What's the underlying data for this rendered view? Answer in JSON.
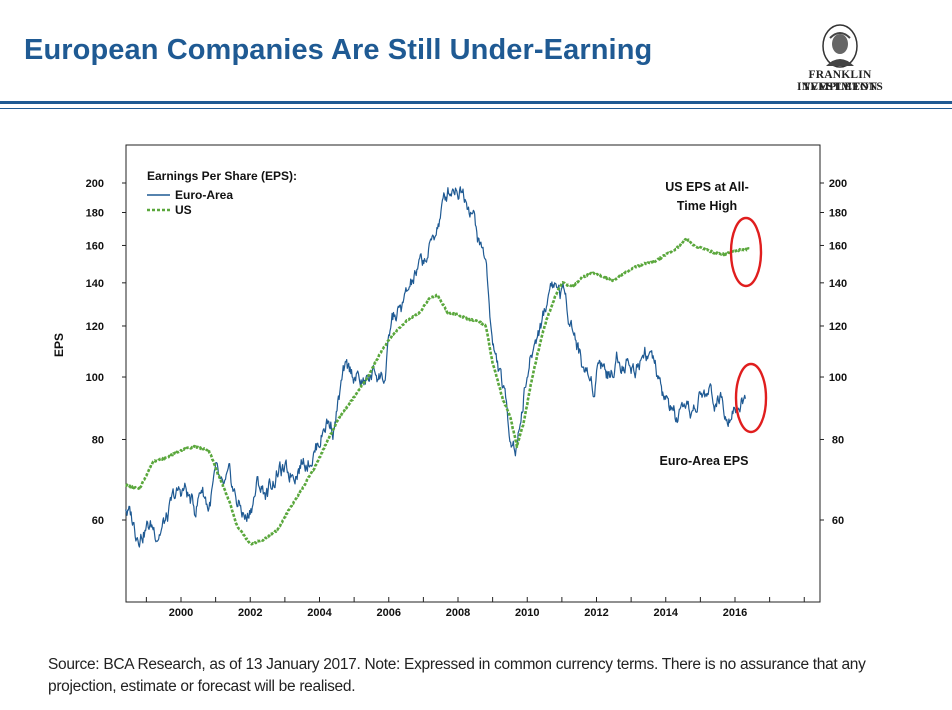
{
  "slide": {
    "title": "European Companies Are Still Under-Earning",
    "footer": "Source: BCA Research, as of 13 January 2017. Note: Expressed in common currency terms. There is no assurance that any projection, estimate or forecast will be realised."
  },
  "logo": {
    "line1": "FRANKLIN TEMPLETON",
    "line2": "INVESTMENTS"
  },
  "colors": {
    "title": "#1f5a93",
    "euro_area": "#1f5a93",
    "us": "#5aa73c",
    "highlight_circle": "#e01e1e"
  },
  "chart_data": {
    "type": "line",
    "title": "",
    "ylabel": "EPS",
    "xlabel": "",
    "y_scale": "log",
    "ylim": [
      48,
      215
    ],
    "xlim": [
      1998.4,
      2018.5
    ],
    "x_ticks": [
      "2000",
      "2002",
      "2004",
      "2006",
      "2008",
      "2010",
      "2012",
      "2014",
      "2016"
    ],
    "y_ticks_left": [
      60,
      80,
      100,
      120,
      140,
      160,
      180,
      200
    ],
    "y_ticks_right": [
      60,
      80,
      100,
      120,
      140,
      160,
      180,
      200
    ],
    "grid": false,
    "legend": {
      "title": "Earnings Per Share (EPS):",
      "position": "top-left"
    },
    "series": [
      {
        "name": "Euro-Area",
        "style": "solid",
        "x": [
          1998.4,
          1998.7,
          1999.0,
          1999.3,
          1999.6,
          1999.8,
          2000.1,
          2000.4,
          2000.6,
          2000.8,
          2001.0,
          2001.2,
          2001.4,
          2001.6,
          2001.9,
          2002.2,
          2002.5,
          2002.8,
          2003.1,
          2003.4,
          2003.6,
          2003.9,
          2004.2,
          2004.4,
          2004.7,
          2005.0,
          2005.3,
          2005.6,
          2005.9,
          2006.1,
          2006.4,
          2006.7,
          2006.9,
          2007.2,
          2007.4,
          2007.7,
          2007.9,
          2008.1,
          2008.4,
          2008.6,
          2008.8,
          2009.0,
          2009.3,
          2009.5,
          2009.7,
          2009.9,
          2010.2,
          2010.5,
          2010.7,
          2010.9,
          2011.1,
          2011.4,
          2011.6,
          2011.9,
          2012.1,
          2012.4,
          2012.6,
          2012.9,
          2013.1,
          2013.4,
          2013.6,
          2013.9,
          2014.1,
          2014.3,
          2014.6,
          2014.8,
          2015.0,
          2015.3,
          2015.6,
          2015.8,
          2016.0,
          2016.3
        ],
        "values": [
          63,
          58,
          59,
          58,
          60,
          64,
          67,
          62,
          68,
          63,
          70,
          65,
          68,
          64,
          60,
          68,
          66,
          72,
          70,
          74,
          75,
          78,
          86,
          84,
          100,
          101,
          97,
          102,
          100,
          122,
          128,
          140,
          147,
          158,
          172,
          193,
          200,
          198,
          185,
          162,
          152,
          112,
          95,
          82,
          78,
          95,
          112,
          126,
          142,
          138,
          133,
          115,
          104,
          97,
          109,
          100,
          108,
          106,
          103,
          112,
          106,
          93,
          90,
          86,
          85,
          88,
          93,
          94,
          92,
          90,
          93,
          92
        ]
      },
      {
        "name": "US",
        "style": "dashed",
        "x": [
          1998.4,
          1998.8,
          1999.2,
          1999.6,
          2000.0,
          2000.4,
          2000.8,
          2001.1,
          2001.4,
          2001.6,
          2002.0,
          2002.4,
          2002.8,
          2003.1,
          2003.5,
          2003.9,
          2004.2,
          2004.6,
          2005.0,
          2005.4,
          2005.8,
          2006.1,
          2006.5,
          2006.9,
          2007.2,
          2007.4,
          2007.7,
          2008.0,
          2008.3,
          2008.6,
          2008.8,
          2009.0,
          2009.3,
          2009.5,
          2009.7,
          2009.9,
          2010.2,
          2010.5,
          2010.8,
          2011.0,
          2011.3,
          2011.6,
          2011.9,
          2012.2,
          2012.5,
          2012.8,
          2013.1,
          2013.4,
          2013.7,
          2014.0,
          2014.3,
          2014.6,
          2014.8,
          2015.1,
          2015.4,
          2015.7,
          2016.0,
          2016.4
        ],
        "values": [
          68,
          67,
          74,
          75,
          77,
          78,
          77,
          70,
          64,
          59,
          55,
          56,
          58,
          62,
          67,
          73,
          79,
          87,
          93,
          100,
          110,
          116,
          122,
          126,
          133,
          134,
          126,
          125,
          123,
          122,
          120,
          105,
          92,
          87,
          78,
          85,
          103,
          120,
          133,
          140,
          138,
          143,
          145,
          143,
          141,
          145,
          148,
          150,
          151,
          155,
          158,
          164,
          160,
          158,
          156,
          155,
          157,
          158
        ]
      }
    ],
    "annotations": [
      {
        "text_lines": [
          "US EPS at All-",
          "Time High"
        ]
      },
      {
        "text": "Euro-Area EPS"
      }
    ]
  }
}
